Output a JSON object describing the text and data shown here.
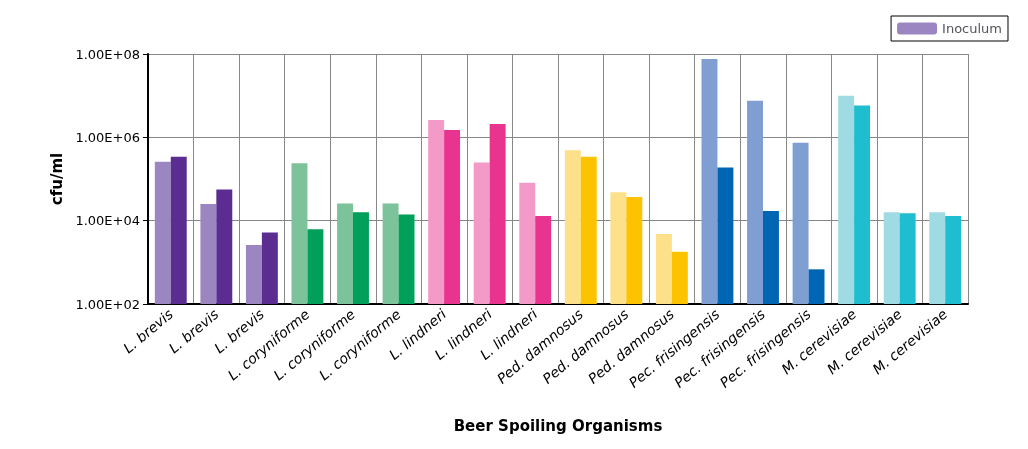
{
  "chart_data": {
    "type": "bar",
    "xlabel": "Beer Spoiling Organisms",
    "ylabel": "cfu/ml",
    "categories": [
      "L. brevis",
      "L. brevis",
      "L. brevis",
      "L. coryniforme",
      "L. coryniforme",
      "L. coryniforme",
      "L. lindneri",
      "L. lindneri",
      "L. lindneri",
      "Ped. damnosus",
      "Ped. damnosus",
      "Ped. damnosus",
      "Pec. frisingensis",
      "Pec. frisingensis",
      "Pec. frisingensis",
      "M. cerevisiae",
      "M. cerevisiae",
      "M. cerevisiae"
    ],
    "series": [
      {
        "name": "Inoculum",
        "color": "#9b86c2",
        "colors": [
          "#9b86c2",
          "#9b86c2",
          "#9b86c2",
          "#7cc29a",
          "#7cc29a",
          "#7cc29a",
          "#f49ac8",
          "#f49ac8",
          "#f49ac8",
          "#fde08a",
          "#fde08a",
          "#fde08a",
          "#7f9fd3",
          "#7f9fd3",
          "#7f9fd3",
          "#a0dbe3",
          "#a0dbe3",
          "#a0dbe3"
        ],
        "values": [
          260000,
          25000,
          2600,
          240000,
          26000,
          26000,
          2600000,
          250000,
          81000,
          490000,
          48000,
          4800,
          76000000,
          7500000,
          740000,
          10000000,
          16000,
          16000
        ]
      },
      {
        "color": "#5b2d91",
        "colors": [
          "#5b2d91",
          "#5b2d91",
          "#5b2d91",
          "#00a05a",
          "#00a05a",
          "#00a05a",
          "#e8348f",
          "#e8348f",
          "#e8348f",
          "#fdc300",
          "#fdc300",
          "#fdc300",
          "#0066b3",
          "#0066b3",
          "#0066b3",
          "#1fbdd0",
          "#1fbdd0",
          "#1fbdd0"
        ],
        "values": [
          340000,
          56000,
          5200,
          6200,
          16000,
          14000,
          1500000,
          2100000,
          13000,
          340000,
          37000,
          1800,
          190000,
          17000,
          680,
          5800000,
          15000,
          13000
        ]
      }
    ],
    "log": "y",
    "ylim": [
      100,
      100000000
    ],
    "yticks": [
      {
        "value": 100,
        "label": "1.00E+02"
      },
      {
        "value": 10000,
        "label": "1.00E+04"
      },
      {
        "value": 1000000,
        "label": "1.00E+06"
      },
      {
        "value": 100000000,
        "label": "1.00E+08"
      }
    ],
    "grid": true,
    "legend": "top right"
  }
}
